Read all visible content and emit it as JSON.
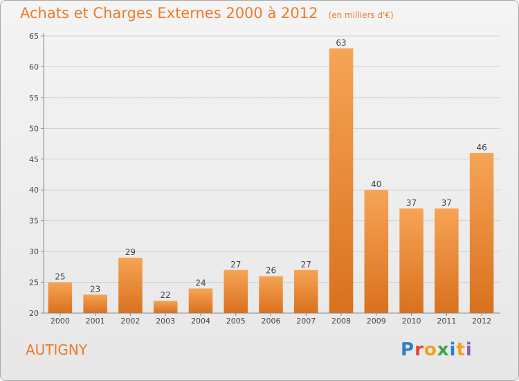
{
  "chart_data": {
    "type": "bar",
    "title": "Achats et Charges Externes 2000 à 2012",
    "subtitle": "(en milliers d'€)",
    "categories": [
      "2000",
      "2001",
      "2002",
      "2003",
      "2004",
      "2005",
      "2006",
      "2007",
      "2008",
      "2009",
      "2010",
      "2011",
      "2012"
    ],
    "values": [
      25,
      23,
      29,
      22,
      24,
      27,
      26,
      27,
      63,
      40,
      37,
      37,
      46
    ],
    "ylim": [
      20,
      65
    ],
    "yticks": [
      20,
      25,
      30,
      35,
      40,
      45,
      50,
      55,
      60,
      65
    ],
    "grid": true,
    "bar_color": "#f08a2e",
    "text_color": "#ef7a2c"
  },
  "footer": {
    "commune": "AUTIGNY",
    "logo_letters": [
      "P",
      "r",
      "o",
      "x",
      "i",
      "t",
      "i"
    ],
    "logo_colors": [
      "#2e7ec9",
      "#e8432e",
      "#f3a11c",
      "#3aa648",
      "#2e7ec9",
      "#f3a11c",
      "#8a59b5"
    ]
  }
}
